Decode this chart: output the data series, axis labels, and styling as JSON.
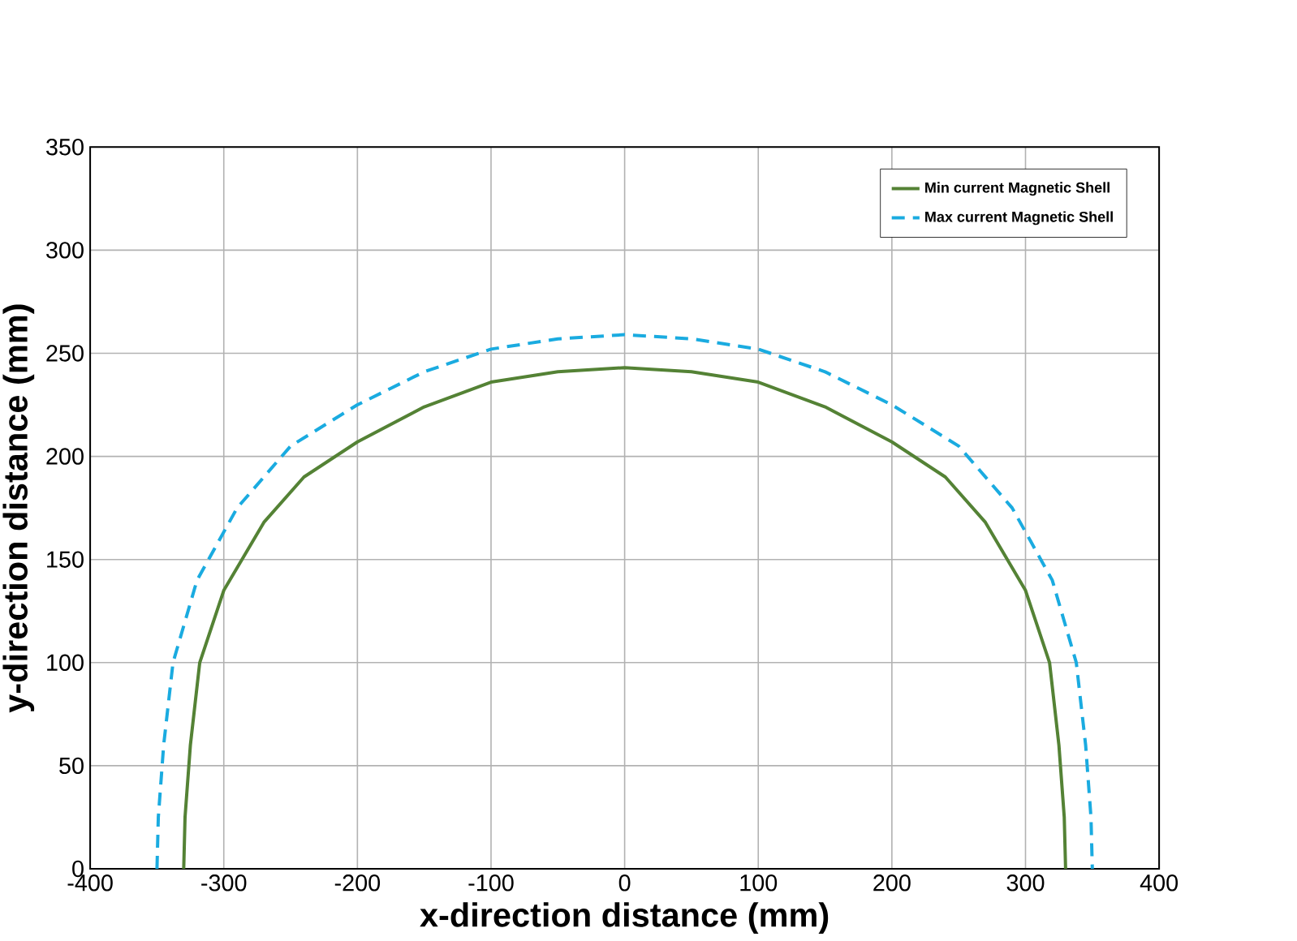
{
  "chart_data": {
    "type": "line",
    "xlabel": "x-direction distance (mm)",
    "ylabel": "y-direction distance  (mm)",
    "xlim": [
      -400,
      400
    ],
    "ylim": [
      0,
      350
    ],
    "xticks": [
      -400,
      -300,
      -200,
      -100,
      0,
      100,
      200,
      300,
      400
    ],
    "yticks": [
      0,
      50,
      100,
      150,
      200,
      250,
      300,
      350
    ],
    "grid": true,
    "legend": "top right",
    "series": [
      {
        "name": "Min current Magnetic Shell",
        "color": "#548235",
        "line_style": "solid",
        "x": [
          -330,
          -329,
          -325,
          -318,
          -300,
          -270,
          -240,
          -200,
          -150,
          -100,
          -50,
          0,
          50,
          100,
          150,
          200,
          240,
          270,
          300,
          318,
          325,
          329,
          330
        ],
        "values": [
          0,
          25,
          60,
          100,
          135,
          168,
          190,
          207,
          224,
          236,
          241,
          243,
          241,
          236,
          224,
          207,
          190,
          168,
          135,
          100,
          60,
          25,
          0
        ]
      },
      {
        "name": "Max current Magnetic Shell",
        "color": "#1aabe0",
        "line_style": "dashed",
        "x": [
          -350,
          -349,
          -345,
          -338,
          -320,
          -290,
          -250,
          -200,
          -150,
          -100,
          -50,
          0,
          50,
          100,
          150,
          200,
          250,
          290,
          320,
          338,
          345,
          349,
          350
        ],
        "values": [
          0,
          25,
          60,
          100,
          140,
          175,
          205,
          225,
          241,
          252,
          257,
          259,
          257,
          252,
          241,
          225,
          205,
          175,
          140,
          100,
          60,
          25,
          0
        ]
      }
    ]
  }
}
